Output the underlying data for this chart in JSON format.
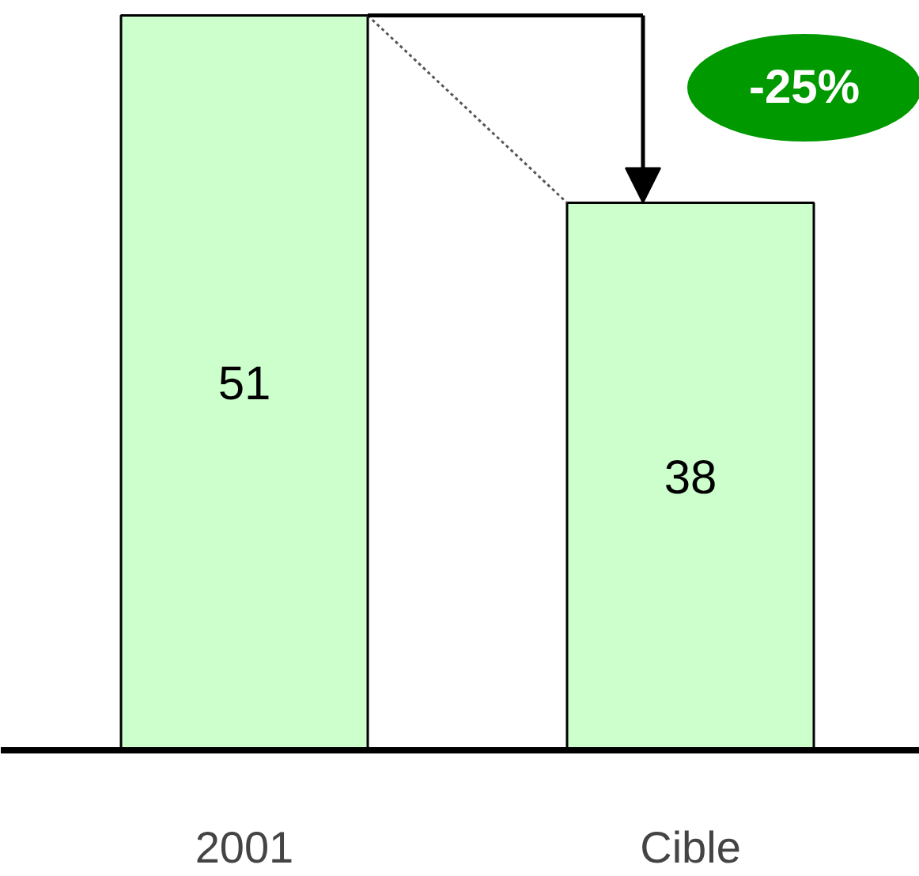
{
  "chart_data": {
    "type": "bar",
    "categories": [
      "2001",
      "Cible"
    ],
    "values": [
      51,
      38
    ],
    "color": "#ccffcc",
    "data_labels": true,
    "annotations": [
      "-25%"
    ]
  }
}
